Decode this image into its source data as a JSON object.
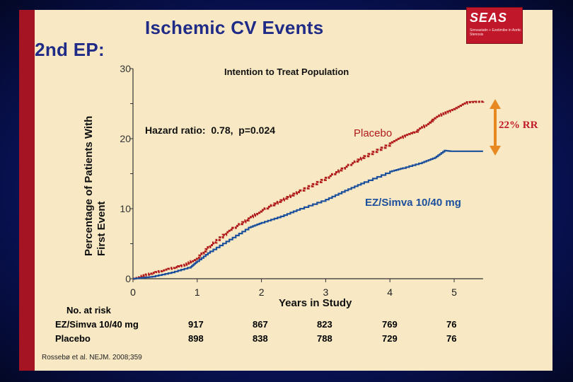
{
  "slide": {
    "title_left": "2nd EP:",
    "title_right": "Ischemic CV Events",
    "logo_text": "SEAS",
    "logo_subtitle": "Simvastatin + Ezetimibe in Aortic Stenosis",
    "citation": "Rossebø et al. NEJM. 2008;359"
  },
  "chart_data": {
    "type": "line",
    "title": "Intention to Treat Population",
    "xlabel": "Years in Study",
    "ylabel": "Percentage of Patients With First Event",
    "xlim": [
      0,
      5.5
    ],
    "ylim": [
      0,
      30
    ],
    "x_ticks": [
      "0",
      "1",
      "2",
      "3",
      "4",
      "5"
    ],
    "y_ticks": [
      "0",
      "10",
      "20",
      "30"
    ],
    "annotation": "Hazard ratio:  0.78,  p=0.024",
    "rr_annotation": "22% RR",
    "series": [
      {
        "name": "Placebo",
        "color": "#b01a1a",
        "style": "dotted",
        "x": [
          0,
          0.2,
          0.5,
          0.8,
          1.0,
          1.2,
          1.5,
          1.8,
          2.0,
          2.3,
          2.6,
          3.0,
          3.3,
          3.6,
          4.0,
          4.2,
          4.4,
          4.6,
          4.8,
          5.0,
          5.2,
          5.45
        ],
        "y": [
          0,
          0.6,
          1.3,
          2.0,
          3.0,
          4.8,
          7.0,
          8.6,
          9.8,
          11.2,
          12.6,
          14.4,
          16.0,
          17.5,
          19.3,
          20.3,
          21.0,
          22.3,
          23.5,
          24.2,
          25.2,
          25.3
        ]
      },
      {
        "name": "EZ/Simva 10/40 mg",
        "color": "#1c4f9c",
        "style": "solid",
        "x": [
          0,
          0.3,
          0.6,
          0.9,
          1.0,
          1.2,
          1.5,
          1.8,
          2.0,
          2.3,
          2.6,
          3.0,
          3.3,
          3.6,
          4.0,
          4.2,
          4.5,
          4.7,
          4.85,
          4.95,
          5.45
        ],
        "y": [
          0,
          0.3,
          0.9,
          1.7,
          2.5,
          3.9,
          5.6,
          7.3,
          8.0,
          8.9,
          10.0,
          11.3,
          12.6,
          13.8,
          15.3,
          15.8,
          16.6,
          17.3,
          18.3,
          18.2,
          18.2
        ]
      }
    ]
  },
  "risk_table": {
    "header": "No. at risk",
    "rows": [
      {
        "label": "EZ/Simva 10/40 mg",
        "values": [
          "917",
          "867",
          "823",
          "769",
          "76"
        ]
      },
      {
        "label": "Placebo",
        "values": [
          "898",
          "838",
          "788",
          "729",
          "76"
        ]
      }
    ]
  }
}
